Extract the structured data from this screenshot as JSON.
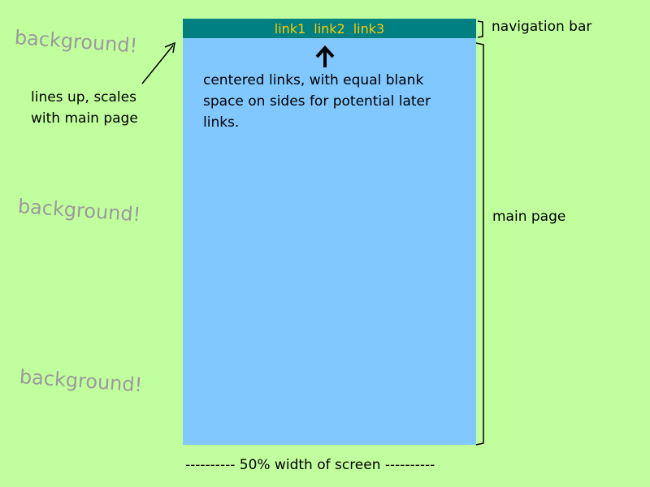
{
  "background_label": "background!",
  "nav_links": [
    "link1",
    "link2",
    "link3"
  ],
  "annotations": {
    "centered_links": "centered links, with equal blank space on sides for potential later links.",
    "lines_up": "lines up, scales with main page",
    "navigation_bar": "navigation bar",
    "main_page": "main page",
    "width": "---------- 50% width of screen ----------"
  },
  "colors": {
    "background": "#c1ff9e",
    "main_page": "#80c8ff",
    "navigation_bar": "#008080",
    "link_text": "#ffcc00",
    "background_label": "#9a9a9a"
  }
}
